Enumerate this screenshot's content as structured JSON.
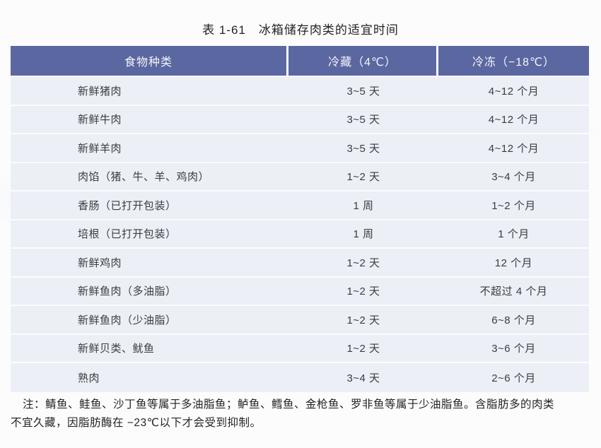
{
  "page": {
    "title": "表 1-61　冰箱储存肉类的适宜时间"
  },
  "table": {
    "columns": [
      "食物种类",
      "冷藏（4℃）",
      "冷冻（−18℃）"
    ],
    "rows": [
      {
        "food": "新鲜猪肉",
        "cold": "3~5 天",
        "frozen": "4~12 个月"
      },
      {
        "food": "新鲜牛肉",
        "cold": "3~5 天",
        "frozen": "4~12 个月"
      },
      {
        "food": "新鲜羊肉",
        "cold": "3~5 天",
        "frozen": "4~12 个月"
      },
      {
        "food": "肉馅（猪、牛、羊、鸡肉）",
        "cold": "1~2 天",
        "frozen": "3~4 个月"
      },
      {
        "food": "香肠（已打开包装）",
        "cold": "1 周",
        "frozen": "1~2 个月"
      },
      {
        "food": "培根（已打开包装）",
        "cold": "1 周",
        "frozen": "1 个月"
      },
      {
        "food": "新鲜鸡肉",
        "cold": "1~2 天",
        "frozen": "12 个月"
      },
      {
        "food": "新鲜鱼肉（多油脂）",
        "cold": "1~2 天",
        "frozen": "不超过 4 个月"
      },
      {
        "food": "新鲜鱼肉（少油脂）",
        "cold": "1~2 天",
        "frozen": "6~8 个月"
      },
      {
        "food": "新鲜贝类、鱿鱼",
        "cold": "1~2 天",
        "frozen": "3~6 个月"
      },
      {
        "food": "熟肉",
        "cold": "3~4 天",
        "frozen": "2~6 个月"
      }
    ]
  },
  "note": {
    "line1": "注：鲭鱼、鲑鱼、沙丁鱼等属于多油脂鱼；鲈鱼、鳕鱼、金枪鱼、罗非鱼等属于少油脂鱼。含脂肪多的肉类",
    "line2": "不宜久藏，因脂肪酶在 −23℃以下才会受到抑制。"
  },
  "colors": {
    "header_bg": "#5b67a0",
    "header_text": "#f4f5fa",
    "row_bg": "#edeff6",
    "row_divider": "#fbfcfe",
    "body_text": "#3a3c42",
    "note_text": "#242424",
    "page_bg": "#fcfcfd"
  }
}
